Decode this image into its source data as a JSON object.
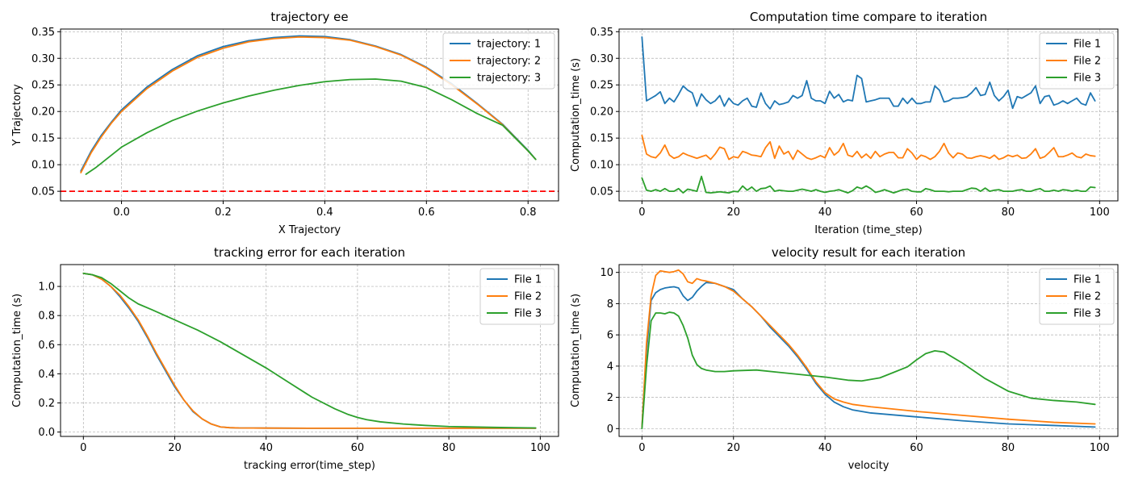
{
  "colors": {
    "c1": "#1f77b4",
    "c2": "#ff7f0e",
    "c3": "#2ca02c",
    "ref": "#ff0000"
  },
  "chart_data": [
    {
      "type": "line",
      "title": "trajectory ee",
      "xlabel": "X Trajectory",
      "ylabel": "Y Trajectory",
      "xlim": [
        -0.12,
        0.86
      ],
      "ylim": [
        0.032,
        0.355
      ],
      "xticks": [
        0.0,
        0.2,
        0.4,
        0.6,
        0.8
      ],
      "xtick_labels": [
        "0.0",
        "0.2",
        "0.4",
        "0.6",
        "0.8"
      ],
      "yticks": [
        0.05,
        0.1,
        0.15,
        0.2,
        0.25,
        0.3,
        0.35
      ],
      "ytick_labels": [
        "0.05",
        "0.10",
        "0.15",
        "0.20",
        "0.25",
        "0.30",
        "0.35"
      ],
      "grid": true,
      "legend": "top-right",
      "hline": {
        "y": 0.05,
        "style": "dashed",
        "color": "#ff0000"
      },
      "series": [
        {
          "name": "trajectory: 1",
          "color": "#1f77b4",
          "x": [
            -0.08,
            -0.06,
            -0.04,
            -0.02,
            0.0,
            0.05,
            0.1,
            0.15,
            0.2,
            0.25,
            0.3,
            0.35,
            0.4,
            0.45,
            0.5,
            0.55,
            0.6,
            0.65,
            0.7,
            0.75,
            0.8,
            0.815
          ],
          "y": [
            0.088,
            0.125,
            0.155,
            0.18,
            0.203,
            0.246,
            0.279,
            0.305,
            0.322,
            0.333,
            0.339,
            0.342,
            0.341,
            0.335,
            0.323,
            0.307,
            0.283,
            0.252,
            0.215,
            0.176,
            0.127,
            0.11
          ]
        },
        {
          "name": "trajectory: 2",
          "color": "#ff7f0e",
          "x": [
            -0.08,
            -0.06,
            -0.04,
            -0.02,
            0.0,
            0.05,
            0.1,
            0.15,
            0.2,
            0.25,
            0.3,
            0.35,
            0.4,
            0.45,
            0.5,
            0.55,
            0.6,
            0.65,
            0.7,
            0.75,
            0.8,
            0.815
          ],
          "y": [
            0.085,
            0.122,
            0.152,
            0.178,
            0.2,
            0.243,
            0.276,
            0.302,
            0.319,
            0.331,
            0.337,
            0.34,
            0.339,
            0.334,
            0.322,
            0.306,
            0.282,
            0.25,
            0.214,
            0.175,
            0.126,
            0.11
          ]
        },
        {
          "name": "trajectory: 3",
          "color": "#2ca02c",
          "x": [
            -0.07,
            -0.05,
            0.0,
            0.05,
            0.1,
            0.15,
            0.2,
            0.25,
            0.3,
            0.35,
            0.4,
            0.45,
            0.5,
            0.55,
            0.6,
            0.65,
            0.7,
            0.75,
            0.8,
            0.815
          ],
          "y": [
            0.082,
            0.095,
            0.133,
            0.16,
            0.183,
            0.201,
            0.216,
            0.229,
            0.24,
            0.249,
            0.256,
            0.26,
            0.261,
            0.257,
            0.245,
            0.222,
            0.196,
            0.174,
            0.126,
            0.11
          ]
        }
      ]
    },
    {
      "type": "line",
      "title": "Computation time compare to iteration",
      "xlabel": "Iteration (time_step)",
      "ylabel": "Computation_time  (s)",
      "xlim": [
        -5,
        104
      ],
      "ylim": [
        0.032,
        0.355
      ],
      "xticks": [
        0,
        20,
        40,
        60,
        80,
        100
      ],
      "xtick_labels": [
        "0",
        "20",
        "40",
        "60",
        "80",
        "100"
      ],
      "yticks": [
        0.05,
        0.1,
        0.15,
        0.2,
        0.25,
        0.3,
        0.35
      ],
      "ytick_labels": [
        "0.05",
        "0.10",
        "0.15",
        "0.20",
        "0.25",
        "0.30",
        "0.35"
      ],
      "grid": true,
      "legend": "top-right",
      "series": [
        {
          "name": "File 1",
          "color": "#1f77b4",
          "y": [
            0.34,
            0.22,
            0.225,
            0.23,
            0.237,
            0.215,
            0.225,
            0.218,
            0.232,
            0.248,
            0.24,
            0.235,
            0.21,
            0.233,
            0.222,
            0.215,
            0.22,
            0.23,
            0.21,
            0.225,
            0.215,
            0.212,
            0.22,
            0.225,
            0.21,
            0.208,
            0.235,
            0.215,
            0.205,
            0.22,
            0.213,
            0.215,
            0.218,
            0.23,
            0.225,
            0.23,
            0.258,
            0.225,
            0.22,
            0.22,
            0.215,
            0.238,
            0.225,
            0.232,
            0.218,
            0.222,
            0.22,
            0.268,
            0.262,
            0.218,
            0.22,
            0.222,
            0.225,
            0.225,
            0.225,
            0.21,
            0.21,
            0.225,
            0.215,
            0.225,
            0.215,
            0.215,
            0.218,
            0.218,
            0.248,
            0.24,
            0.218,
            0.22,
            0.225,
            0.225,
            0.226,
            0.228,
            0.235,
            0.245,
            0.23,
            0.232,
            0.255,
            0.23,
            0.22,
            0.228,
            0.24,
            0.206,
            0.228,
            0.225,
            0.23,
            0.235,
            0.248,
            0.215,
            0.228,
            0.23,
            0.212,
            0.215,
            0.22,
            0.215,
            0.22,
            0.225,
            0.215,
            0.212,
            0.235,
            0.22
          ]
        },
        {
          "name": "File 2",
          "color": "#ff7f0e",
          "y": [
            0.155,
            0.12,
            0.115,
            0.113,
            0.122,
            0.137,
            0.118,
            0.112,
            0.115,
            0.122,
            0.118,
            0.115,
            0.112,
            0.115,
            0.118,
            0.11,
            0.12,
            0.133,
            0.13,
            0.11,
            0.115,
            0.113,
            0.125,
            0.122,
            0.118,
            0.117,
            0.115,
            0.132,
            0.143,
            0.112,
            0.135,
            0.12,
            0.125,
            0.11,
            0.127,
            0.12,
            0.113,
            0.11,
            0.113,
            0.117,
            0.113,
            0.132,
            0.118,
            0.125,
            0.14,
            0.118,
            0.115,
            0.125,
            0.113,
            0.12,
            0.112,
            0.125,
            0.115,
            0.12,
            0.123,
            0.123,
            0.113,
            0.113,
            0.13,
            0.122,
            0.11,
            0.118,
            0.115,
            0.11,
            0.115,
            0.125,
            0.14,
            0.122,
            0.113,
            0.122,
            0.12,
            0.113,
            0.112,
            0.115,
            0.117,
            0.115,
            0.112,
            0.118,
            0.11,
            0.113,
            0.118,
            0.115,
            0.118,
            0.112,
            0.113,
            0.12,
            0.13,
            0.112,
            0.115,
            0.123,
            0.132,
            0.115,
            0.115,
            0.118,
            0.122,
            0.115,
            0.113,
            0.12,
            0.117,
            0.116
          ]
        },
        {
          "name": "File 3",
          "color": "#2ca02c",
          "y": [
            0.075,
            0.052,
            0.05,
            0.053,
            0.05,
            0.055,
            0.05,
            0.05,
            0.055,
            0.047,
            0.054,
            0.052,
            0.05,
            0.078,
            0.048,
            0.047,
            0.048,
            0.049,
            0.048,
            0.047,
            0.05,
            0.049,
            0.06,
            0.052,
            0.058,
            0.05,
            0.055,
            0.056,
            0.06,
            0.05,
            0.052,
            0.051,
            0.05,
            0.05,
            0.052,
            0.054,
            0.052,
            0.05,
            0.053,
            0.05,
            0.048,
            0.05,
            0.051,
            0.053,
            0.05,
            0.047,
            0.051,
            0.058,
            0.055,
            0.06,
            0.055,
            0.048,
            0.05,
            0.053,
            0.05,
            0.047,
            0.05,
            0.053,
            0.054,
            0.05,
            0.049,
            0.049,
            0.055,
            0.053,
            0.05,
            0.05,
            0.05,
            0.049,
            0.05,
            0.05,
            0.05,
            0.053,
            0.056,
            0.055,
            0.05,
            0.056,
            0.05,
            0.052,
            0.053,
            0.05,
            0.05,
            0.05,
            0.052,
            0.053,
            0.05,
            0.05,
            0.053,
            0.055,
            0.05,
            0.05,
            0.052,
            0.05,
            0.053,
            0.052,
            0.05,
            0.052,
            0.05,
            0.05,
            0.058,
            0.057
          ]
        }
      ]
    },
    {
      "type": "line",
      "title": "tracking error for each iteration",
      "xlabel": "tracking error(time_step)",
      "ylabel": "Computation_time  (s)",
      "xlim": [
        -5,
        104
      ],
      "ylim": [
        -0.03,
        1.15
      ],
      "xticks": [
        0,
        20,
        40,
        60,
        80,
        100
      ],
      "xtick_labels": [
        "0",
        "20",
        "40",
        "60",
        "80",
        "100"
      ],
      "yticks": [
        0.0,
        0.2,
        0.4,
        0.6,
        0.8,
        1.0
      ],
      "ytick_labels": [
        "0.0",
        "0.2",
        "0.4",
        "0.6",
        "0.8",
        "1.0"
      ],
      "grid": true,
      "legend": "top-right",
      "series": [
        {
          "name": "File 1",
          "color": "#1f77b4",
          "x": [
            0,
            2,
            4,
            6,
            8,
            10,
            12,
            14,
            16,
            18,
            20,
            22,
            24,
            26,
            28,
            30,
            32,
            34,
            40,
            50,
            60,
            70,
            80,
            90,
            99
          ],
          "y": [
            1.09,
            1.08,
            1.05,
            1.0,
            0.93,
            0.85,
            0.76,
            0.65,
            0.53,
            0.42,
            0.31,
            0.22,
            0.14,
            0.09,
            0.055,
            0.035,
            0.03,
            0.028,
            0.027,
            0.026,
            0.026,
            0.026,
            0.026,
            0.026,
            0.026
          ]
        },
        {
          "name": "File 2",
          "color": "#ff7f0e",
          "x": [
            0,
            2,
            4,
            6,
            8,
            10,
            12,
            14,
            16,
            18,
            20,
            22,
            24,
            26,
            28,
            30,
            32,
            34,
            40,
            50,
            60,
            70,
            80,
            90,
            99
          ],
          "y": [
            1.09,
            1.08,
            1.05,
            1.0,
            0.94,
            0.86,
            0.77,
            0.66,
            0.54,
            0.43,
            0.32,
            0.22,
            0.145,
            0.09,
            0.055,
            0.035,
            0.03,
            0.028,
            0.027,
            0.026,
            0.026,
            0.026,
            0.026,
            0.026,
            0.026
          ]
        },
        {
          "name": "File 3",
          "color": "#2ca02c",
          "x": [
            0,
            2,
            4,
            6,
            8,
            10,
            12,
            15,
            20,
            25,
            30,
            35,
            40,
            45,
            50,
            55,
            58,
            60,
            62,
            65,
            70,
            75,
            80,
            90,
            99
          ],
          "y": [
            1.09,
            1.08,
            1.06,
            1.02,
            0.97,
            0.92,
            0.88,
            0.84,
            0.77,
            0.7,
            0.62,
            0.53,
            0.44,
            0.34,
            0.24,
            0.16,
            0.12,
            0.1,
            0.085,
            0.07,
            0.055,
            0.045,
            0.038,
            0.032,
            0.028
          ]
        }
      ]
    },
    {
      "type": "line",
      "title": "velocity result for each iteration",
      "xlabel": "velocity",
      "ylabel": "Computation_time  (s)",
      "xlim": [
        -5,
        104
      ],
      "ylim": [
        -0.5,
        10.5
      ],
      "xticks": [
        0,
        20,
        40,
        60,
        80,
        100
      ],
      "xtick_labels": [
        "0",
        "20",
        "40",
        "60",
        "80",
        "100"
      ],
      "yticks": [
        0,
        2,
        4,
        6,
        8,
        10
      ],
      "ytick_labels": [
        "0",
        "2",
        "4",
        "6",
        "8",
        "10"
      ],
      "grid": true,
      "legend": "top-right",
      "series": [
        {
          "name": "File 1",
          "color": "#1f77b4",
          "x": [
            0,
            1,
            2,
            3,
            4,
            5,
            6,
            7,
            8,
            9,
            10,
            11,
            12,
            13,
            14,
            16,
            18,
            20,
            22,
            24,
            26,
            28,
            30,
            32,
            34,
            36,
            38,
            40,
            42,
            44,
            46,
            50,
            60,
            70,
            80,
            90,
            99
          ],
          "y": [
            0.1,
            5.0,
            8.2,
            8.7,
            8.9,
            9.0,
            9.05,
            9.08,
            9.0,
            8.5,
            8.2,
            8.4,
            8.8,
            9.1,
            9.35,
            9.3,
            9.1,
            8.9,
            8.3,
            7.8,
            7.2,
            6.5,
            5.9,
            5.3,
            4.6,
            3.8,
            2.9,
            2.2,
            1.7,
            1.4,
            1.2,
            1.0,
            0.75,
            0.5,
            0.3,
            0.2,
            0.1
          ]
        },
        {
          "name": "File 2",
          "color": "#ff7f0e",
          "x": [
            0,
            1,
            2,
            3,
            4,
            5,
            6,
            7,
            8,
            9,
            10,
            11,
            12,
            13,
            14,
            16,
            18,
            20,
            22,
            24,
            26,
            28,
            30,
            32,
            34,
            36,
            38,
            40,
            42,
            44,
            46,
            50,
            60,
            70,
            80,
            90,
            99
          ],
          "y": [
            0.1,
            5.5,
            8.5,
            9.8,
            10.1,
            10.05,
            10.0,
            10.05,
            10.15,
            9.9,
            9.4,
            9.3,
            9.6,
            9.5,
            9.45,
            9.3,
            9.1,
            8.8,
            8.3,
            7.8,
            7.2,
            6.6,
            6.0,
            5.4,
            4.7,
            3.9,
            3.0,
            2.3,
            1.9,
            1.7,
            1.55,
            1.4,
            1.1,
            0.85,
            0.6,
            0.4,
            0.3
          ]
        },
        {
          "name": "File 3",
          "color": "#2ca02c",
          "x": [
            0,
            1,
            2,
            3,
            4,
            5,
            6,
            7,
            8,
            9,
            10,
            11,
            12,
            13,
            14,
            16,
            18,
            20,
            25,
            30,
            35,
            40,
            45,
            48,
            52,
            55,
            58,
            60,
            62,
            64,
            66,
            70,
            75,
            80,
            85,
            90,
            95,
            99
          ],
          "y": [
            0.0,
            4.0,
            6.9,
            7.4,
            7.4,
            7.35,
            7.45,
            7.4,
            7.2,
            6.6,
            5.8,
            4.7,
            4.1,
            3.85,
            3.75,
            3.65,
            3.65,
            3.7,
            3.75,
            3.6,
            3.45,
            3.3,
            3.1,
            3.05,
            3.25,
            3.6,
            3.95,
            4.4,
            4.8,
            4.98,
            4.9,
            4.2,
            3.2,
            2.4,
            1.95,
            1.8,
            1.7,
            1.55
          ]
        }
      ]
    }
  ]
}
